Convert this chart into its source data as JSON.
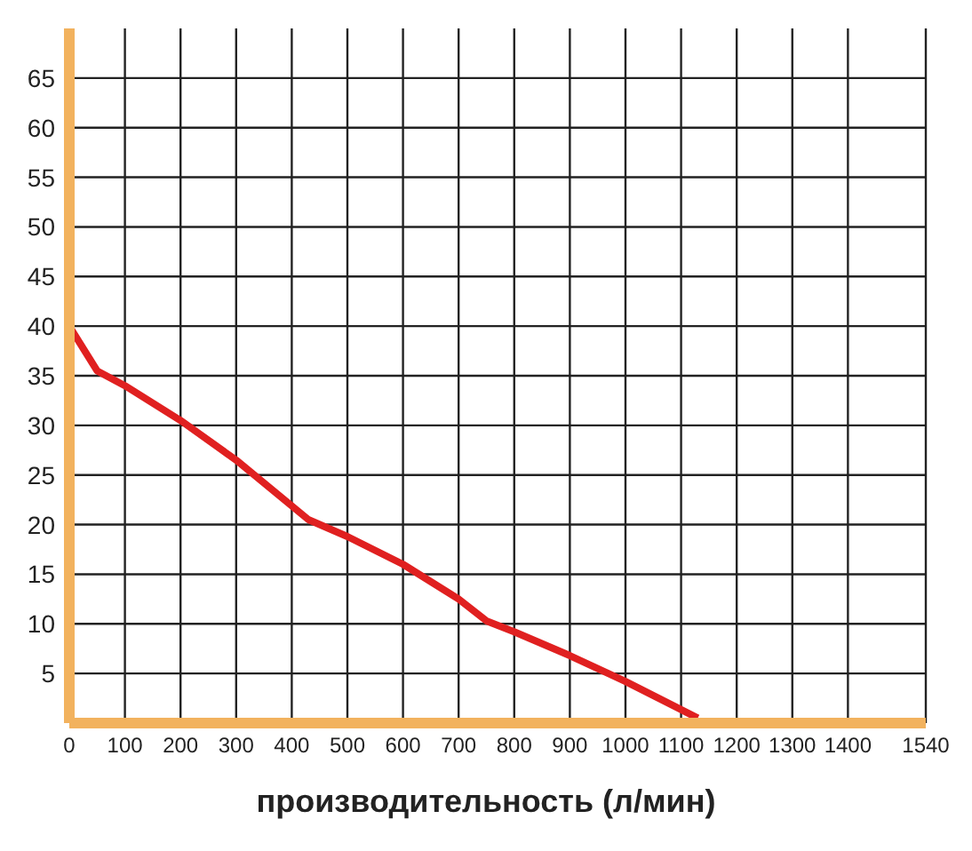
{
  "chart_data": {
    "type": "line",
    "xlabel": "производительность (л/мин)",
    "x": [
      0,
      50,
      100,
      200,
      300,
      430,
      500,
      600,
      700,
      750,
      800,
      900,
      1000,
      1130
    ],
    "series": [
      {
        "color": "#e02020",
        "values": [
          40,
          35.5,
          34,
          30.5,
          26.5,
          20.5,
          18.8,
          16,
          12.5,
          10.3,
          9.2,
          6.8,
          4.2,
          0.5
        ]
      }
    ],
    "xlim": [
      0,
      1540
    ],
    "xticks": [
      0,
      100,
      200,
      300,
      400,
      500,
      600,
      700,
      800,
      900,
      1000,
      1100,
      1200,
      1300,
      1400,
      1540
    ],
    "ylim": [
      0,
      70
    ],
    "yticks": [
      5,
      10,
      15,
      20,
      25,
      30,
      35,
      40,
      45,
      50,
      55,
      60,
      65
    ],
    "grid": true,
    "marker": "none",
    "line_style": "solid"
  }
}
